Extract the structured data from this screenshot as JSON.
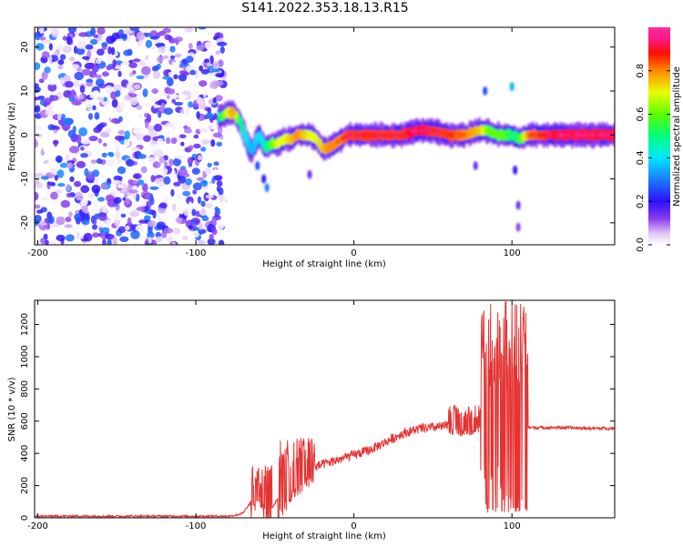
{
  "title": "S141.2022.353.18.13.R15",
  "colors": {
    "snr_line": "#e53333",
    "axis": "#000000"
  },
  "chart_data": [
    {
      "type": "heatmap",
      "xlabel": "Height of straight line (km)",
      "ylabel": "Frequency (Hz)",
      "xlim": [
        -202,
        165
      ],
      "ylim": [
        -25,
        24.5
      ],
      "x_ticks": [
        -200,
        -100,
        0,
        100
      ],
      "y_ticks": [
        -20,
        -10,
        0,
        10,
        20
      ],
      "colorbar": {
        "label": "Normalized spectral amplitude",
        "range": [
          0,
          1
        ],
        "ticks": [
          0.0,
          0.2,
          0.4,
          0.6,
          0.8
        ],
        "colormap": "gist_ncar-like (white → purple → blue → cyan → green → yellow → red → magenta)"
      },
      "signal_track": {
        "description": "frequency centre of the dominant spectral line versus height",
        "x": [
          -85,
          -80,
          -76,
          -72,
          -68,
          -65,
          -60,
          -56,
          -52,
          -48,
          -44,
          -40,
          -36,
          -32,
          -28,
          -24,
          -20,
          -16,
          -12,
          -8,
          -4,
          0,
          5,
          10,
          20,
          30,
          40,
          50,
          60,
          70,
          80,
          85,
          90,
          95,
          100,
          105,
          110,
          120,
          130,
          140,
          150,
          160,
          165
        ],
        "freq": [
          4,
          5,
          5,
          3,
          -1,
          -4,
          0,
          -3,
          -2,
          -2,
          -1,
          -1,
          0,
          0,
          0,
          -1,
          -3,
          -3,
          -2,
          -1,
          0,
          0,
          0,
          0,
          0,
          0,
          1,
          1,
          0,
          0,
          1,
          1,
          0,
          0,
          0,
          -1,
          0,
          0,
          0,
          0,
          0,
          0,
          0
        ],
        "peak_amp": [
          0.5,
          0.7,
          0.8,
          0.5,
          0.4,
          0.35,
          0.4,
          0.45,
          0.6,
          0.7,
          0.7,
          0.75,
          0.8,
          0.75,
          0.7,
          0.7,
          0.75,
          0.8,
          0.8,
          0.8,
          0.85,
          0.85,
          0.85,
          0.85,
          0.85,
          0.85,
          0.9,
          0.85,
          0.85,
          0.8,
          0.75,
          0.6,
          0.6,
          0.6,
          0.5,
          0.55,
          0.8,
          0.85,
          0.9,
          0.9,
          0.9,
          0.9,
          0.9
        ]
      },
      "noise_region": {
        "x_range": [
          -202,
          -82
        ],
        "amplitude": "0.0-0.35"
      }
    },
    {
      "type": "line",
      "xlabel": "Height of straight line (km)",
      "ylabel": "SNR (10 * v/v)",
      "xlim": [
        -202,
        165
      ],
      "ylim": [
        0,
        1350
      ],
      "x_ticks": [
        -200,
        -100,
        0,
        100
      ],
      "y_ticks": [
        0,
        200,
        400,
        600,
        800,
        1000,
        1200
      ],
      "series": [
        {
          "x": [
            -202,
            -150,
            -100,
            -80,
            -75,
            -70,
            -65,
            -60,
            -56,
            -52,
            -48,
            -44,
            -40,
            -35,
            -30,
            -20,
            -10,
            0,
            10,
            20,
            30,
            40,
            50,
            60,
            70,
            80,
            85,
            90,
            95,
            100,
            105,
            110,
            115,
            130,
            150,
            165
          ],
          "values": [
            10,
            10,
            10,
            10,
            15,
            30,
            100,
            180,
            100,
            60,
            120,
            200,
            240,
            270,
            300,
            330,
            360,
            390,
            420,
            470,
            520,
            550,
            560,
            570,
            580,
            590,
            580,
            560,
            560,
            570,
            560,
            560,
            560,
            560,
            555,
            555
          ]
        }
      ],
      "oscillation_zones": [
        {
          "x_range": [
            -65,
            -52
          ],
          "max": 330
        },
        {
          "x_range": [
            -48,
            -25
          ],
          "max": 500
        },
        {
          "x_range": [
            60,
            80
          ],
          "max": 700
        },
        {
          "x_range": [
            80,
            110
          ],
          "max": 1340,
          "min": 30
        }
      ]
    }
  ]
}
